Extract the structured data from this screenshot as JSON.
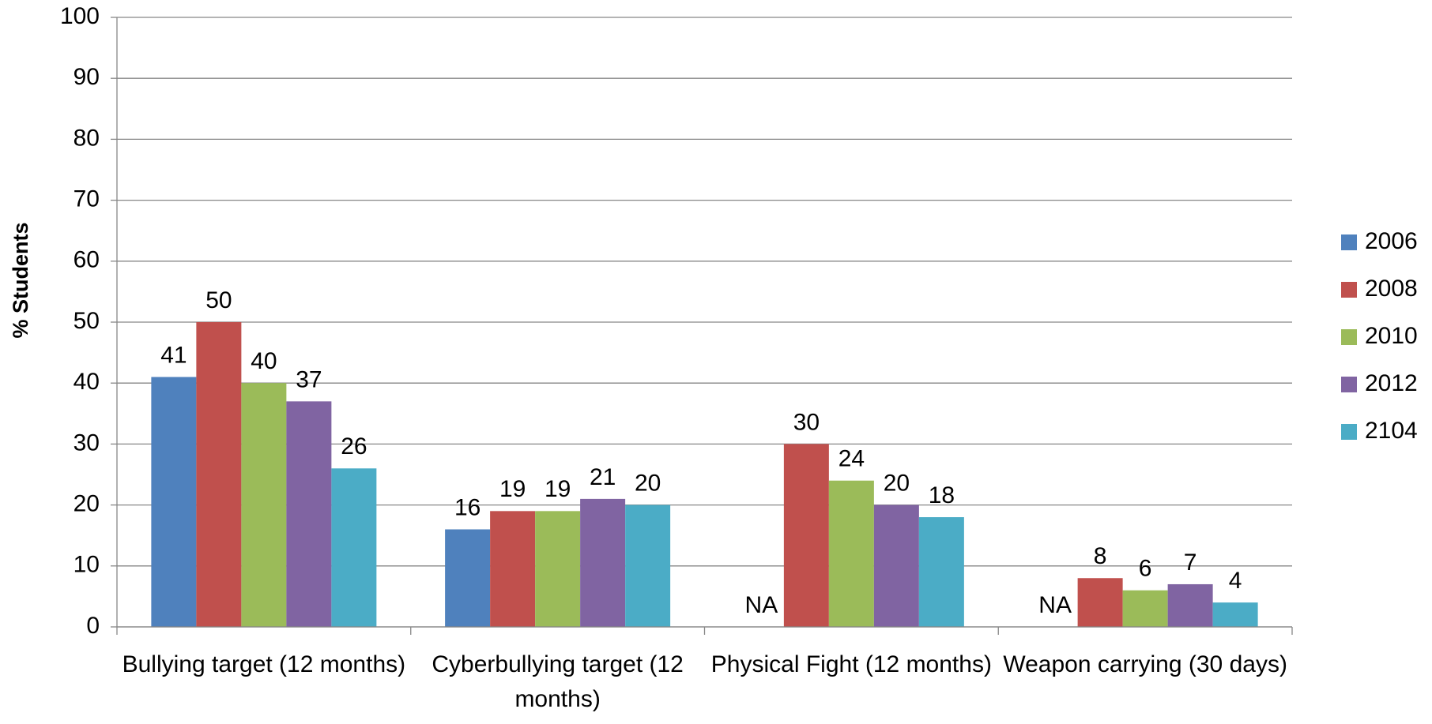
{
  "chart_data": {
    "type": "bar",
    "y_label": "% Students",
    "categories": [
      "Bullying target (12 months)",
      "Cyberbullying target (12 months)",
      "Physical Fight (12 months)",
      "Weapon carrying (30 days)"
    ],
    "series": [
      {
        "name": "2006",
        "color": "#4f81bd",
        "values": [
          41,
          16,
          null,
          null
        ],
        "value_labels": [
          "41",
          "16",
          "NA",
          "NA"
        ]
      },
      {
        "name": "2008",
        "color": "#c0504d",
        "values": [
          50,
          19,
          30,
          8
        ]
      },
      {
        "name": "2010",
        "color": "#9bbb59",
        "values": [
          40,
          19,
          24,
          6
        ]
      },
      {
        "name": "2012",
        "color": "#8064a2",
        "values": [
          37,
          21,
          20,
          7
        ]
      },
      {
        "name": "2104",
        "color": "#4bacc6",
        "values": [
          26,
          20,
          18,
          4
        ]
      }
    ],
    "ylim": [
      0,
      100
    ],
    "yticks": [
      0,
      10,
      20,
      30,
      40,
      50,
      60,
      70,
      80,
      90,
      100
    ],
    "grid": true,
    "legend": "right"
  }
}
